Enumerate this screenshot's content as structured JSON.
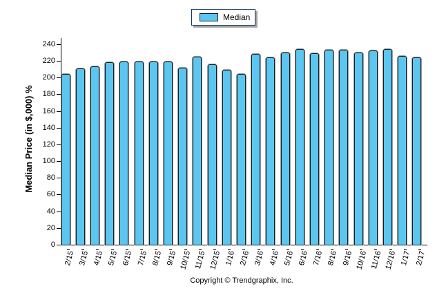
{
  "legend": {
    "label": "Median"
  },
  "footer": {
    "copyright": "Copyright © Trendgraphix, Inc."
  },
  "colors": {
    "bar_fill": "#5BC6F0",
    "bar_border": "#1C1C1C",
    "bar_shadow": "#9A9A9A",
    "legend_border": "#17375E",
    "legend_shadow": "#A6A6A6",
    "axis": "#000000",
    "text": "#000000"
  },
  "chart_data": {
    "type": "bar",
    "title": "",
    "xlabel": "",
    "ylabel": "Median Price (in $,000) %",
    "ylim": [
      0,
      240
    ],
    "y_ticks": [
      0,
      20,
      40,
      60,
      80,
      100,
      120,
      140,
      160,
      180,
      200,
      220,
      240
    ],
    "grid": false,
    "legend_position": "top-center",
    "categories": [
      "2/15",
      "3/15",
      "4/15",
      "5/15",
      "6/15",
      "7/15",
      "8/15",
      "9/15",
      "10/15",
      "11/15",
      "12/15",
      "1/16",
      "2/16",
      "3/16",
      "4/16",
      "5/16",
      "6/16",
      "7/16",
      "8/16",
      "9/16",
      "10/16",
      "11/16",
      "12/16",
      "1/17",
      "2/17"
    ],
    "series": [
      {
        "name": "Median",
        "color": "#5BC6F0",
        "values": [
          205,
          212,
          214,
          219,
          220,
          220,
          220,
          220,
          213,
          226,
          217,
          210,
          205,
          229,
          225,
          231,
          235,
          230,
          234,
          234,
          231,
          233,
          235,
          227,
          225
        ]
      }
    ]
  }
}
